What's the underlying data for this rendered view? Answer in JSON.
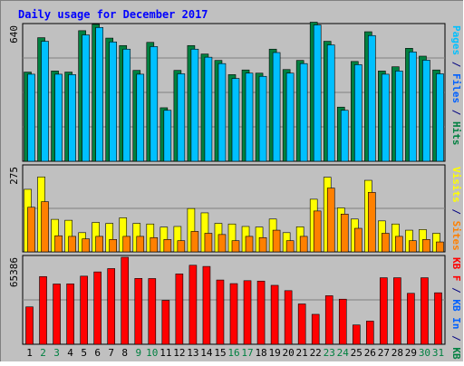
{
  "chart_data": {
    "type": "bar",
    "title": "Daily usage for December 2017",
    "categories": [
      "1",
      "2",
      "3",
      "4",
      "5",
      "6",
      "7",
      "8",
      "9",
      "10",
      "11",
      "12",
      "13",
      "14",
      "15",
      "16",
      "17",
      "18",
      "19",
      "20",
      "21",
      "22",
      "23",
      "24",
      "25",
      "26",
      "27",
      "28",
      "29",
      "30",
      "31"
    ],
    "weekend_days": [
      "2",
      "3",
      "9",
      "10",
      "16",
      "17",
      "23",
      "24",
      "30",
      "31"
    ],
    "panels": [
      {
        "id": "top",
        "tick_label": "640",
        "ylim": [
          0,
          640
        ],
        "side_label": [
          {
            "text": "Pages",
            "color": "#00c0ff"
          },
          {
            "text": " / ",
            "color": "#000080"
          },
          {
            "text": "Files",
            "color": "#0060ff"
          },
          {
            "text": " / ",
            "color": "#000080"
          },
          {
            "text": "Hits",
            "color": "#008040"
          }
        ],
        "series": [
          {
            "name": "Hits",
            "color": "#008040",
            "values": [
              420,
              582,
              425,
              420,
              615,
              645,
              580,
              545,
              428,
              560,
              252,
              428,
              545,
              505,
              475,
              408,
              430,
              415,
              528,
              432,
              475,
              655,
              565,
              255,
              470,
              610,
              425,
              445,
              532,
              495,
              430
            ]
          },
          {
            "name": "Files",
            "color": "#00c0ff",
            "values": [
              410,
              565,
              410,
              408,
              595,
              630,
              562,
              528,
              410,
              540,
              240,
              412,
              528,
              490,
              460,
              390,
              415,
              400,
              512,
              415,
              460,
              642,
              548,
              240,
              455,
              592,
              410,
              425,
              515,
              476,
              412
            ]
          }
        ]
      },
      {
        "id": "mid",
        "tick_label": "275",
        "ylim": [
          0,
          275
        ],
        "side_label": [
          {
            "text": "Visits",
            "color": "#ffff00"
          },
          {
            "text": " / ",
            "color": "#000080"
          },
          {
            "text": "Sites",
            "color": "#ff8000"
          }
        ],
        "series": [
          {
            "name": "Visits",
            "color": "#ffff00",
            "values": [
              202,
              242,
              105,
              102,
              62,
              95,
              92,
              110,
              92,
              90,
              80,
              82,
              140,
              126,
              92,
              90,
              82,
              80,
              106,
              62,
              81,
              170,
              241,
              142,
              106,
              231,
              100,
              90,
              70,
              72,
              60
            ]
          },
          {
            "name": "Sites",
            "color": "#ff8000",
            "values": [
              144,
              162,
              52,
              50,
              42,
              50,
              40,
              50,
              50,
              46,
              40,
              36,
              66,
              60,
              56,
              36,
              50,
              46,
              70,
              36,
              50,
              132,
              206,
              122,
              76,
              192,
              60,
              50,
              36,
              40,
              32
            ]
          }
        ]
      },
      {
        "id": "bot",
        "tick_label": "65386",
        "ylim": [
          0,
          65386
        ],
        "side_label": [
          {
            "text": "KB F",
            "color": "#ff0000"
          },
          {
            "text": " / ",
            "color": "#000080"
          },
          {
            "text": "KB In",
            "color": "#0060ff"
          },
          {
            "text": " / ",
            "color": "#000080"
          },
          {
            "text": "KB Out",
            "color": "#008040"
          }
        ],
        "series": [
          {
            "name": "KB F",
            "color": "#ff0000",
            "values": [
              28100,
              50900,
              45300,
              45400,
              51200,
              54400,
              56900,
              65400,
              49500,
              49400,
              33000,
              52900,
              59400,
              58500,
              48300,
              45600,
              47800,
              47500,
              44300,
              40300,
              30300,
              22500,
              36500,
              33900,
              14500,
              17400,
              50000,
              50000,
              38300,
              50000,
              38700
            ]
          }
        ]
      }
    ]
  },
  "colors": {
    "background": "#c0c0c0",
    "frame": "#ffffff",
    "title": "#0000ff",
    "day_weekday": "#000000",
    "day_weekend": "#008040"
  }
}
